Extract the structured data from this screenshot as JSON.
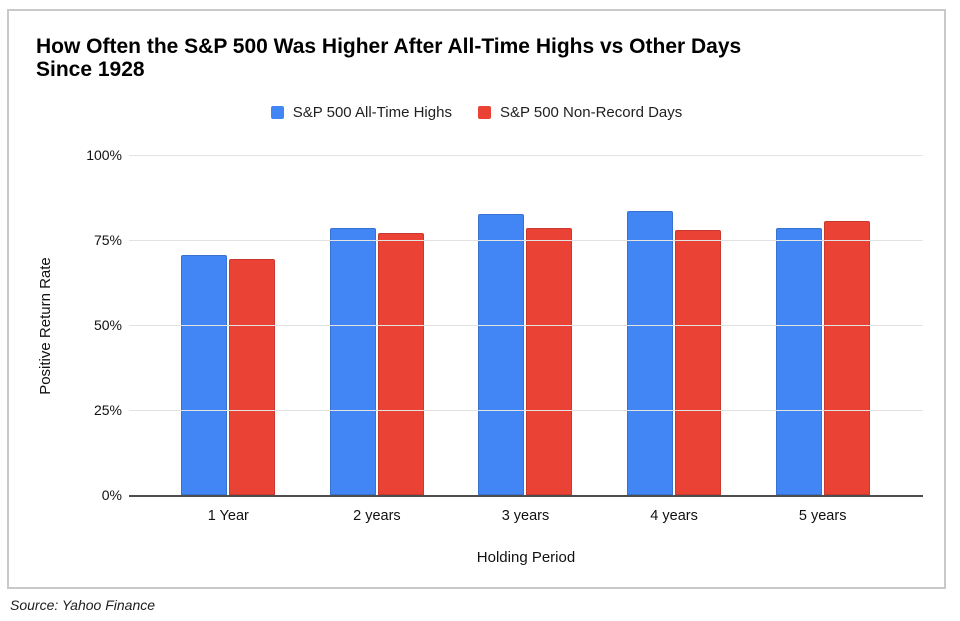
{
  "card": {
    "background": "#ffffff",
    "border_color": "#c9c9c9"
  },
  "title": {
    "text": "How Often the S&P 500 Was Higher After All-Time Highs vs Other Days Since 1928",
    "lines": [
      "How Often the S&P 500 Was Higher After All-Time Highs vs Other Days",
      "Since 1928"
    ]
  },
  "legend": {
    "items": [
      {
        "label": "S&P 500 All-Time Highs",
        "color": "#4285F4"
      },
      {
        "label": "S&P 500 Non-Record Days",
        "color": "#EA4335"
      }
    ]
  },
  "chart_data": {
    "type": "bar",
    "title": "How Often the S&P 500 Was Higher After All-Time Highs vs Other Days Since 1928",
    "categories": [
      "1 Year",
      "2 years",
      "3 years",
      "4 years",
      "5 years"
    ],
    "series": [
      {
        "name": "S&P 500 All-Time Highs",
        "color": "#4285F4",
        "values": [
          70.5,
          78.5,
          82.5,
          83.5,
          78.5
        ]
      },
      {
        "name": "S&P 500 Non-Record Days",
        "color": "#EA4335",
        "values": [
          69.5,
          77,
          78.5,
          78,
          80.5
        ]
      }
    ],
    "xlabel": "Holding Period",
    "ylabel": "Positive Return Rate",
    "ylim": [
      0,
      100
    ],
    "yticks": [
      "0%",
      "25%",
      "50%",
      "75%",
      "100%"
    ],
    "grid": true,
    "legend_position": "top",
    "gridline_color": "#e2e2e2",
    "axis_line_color": "#4d4d4d"
  },
  "source": {
    "text": "Source: Yahoo Finance"
  }
}
